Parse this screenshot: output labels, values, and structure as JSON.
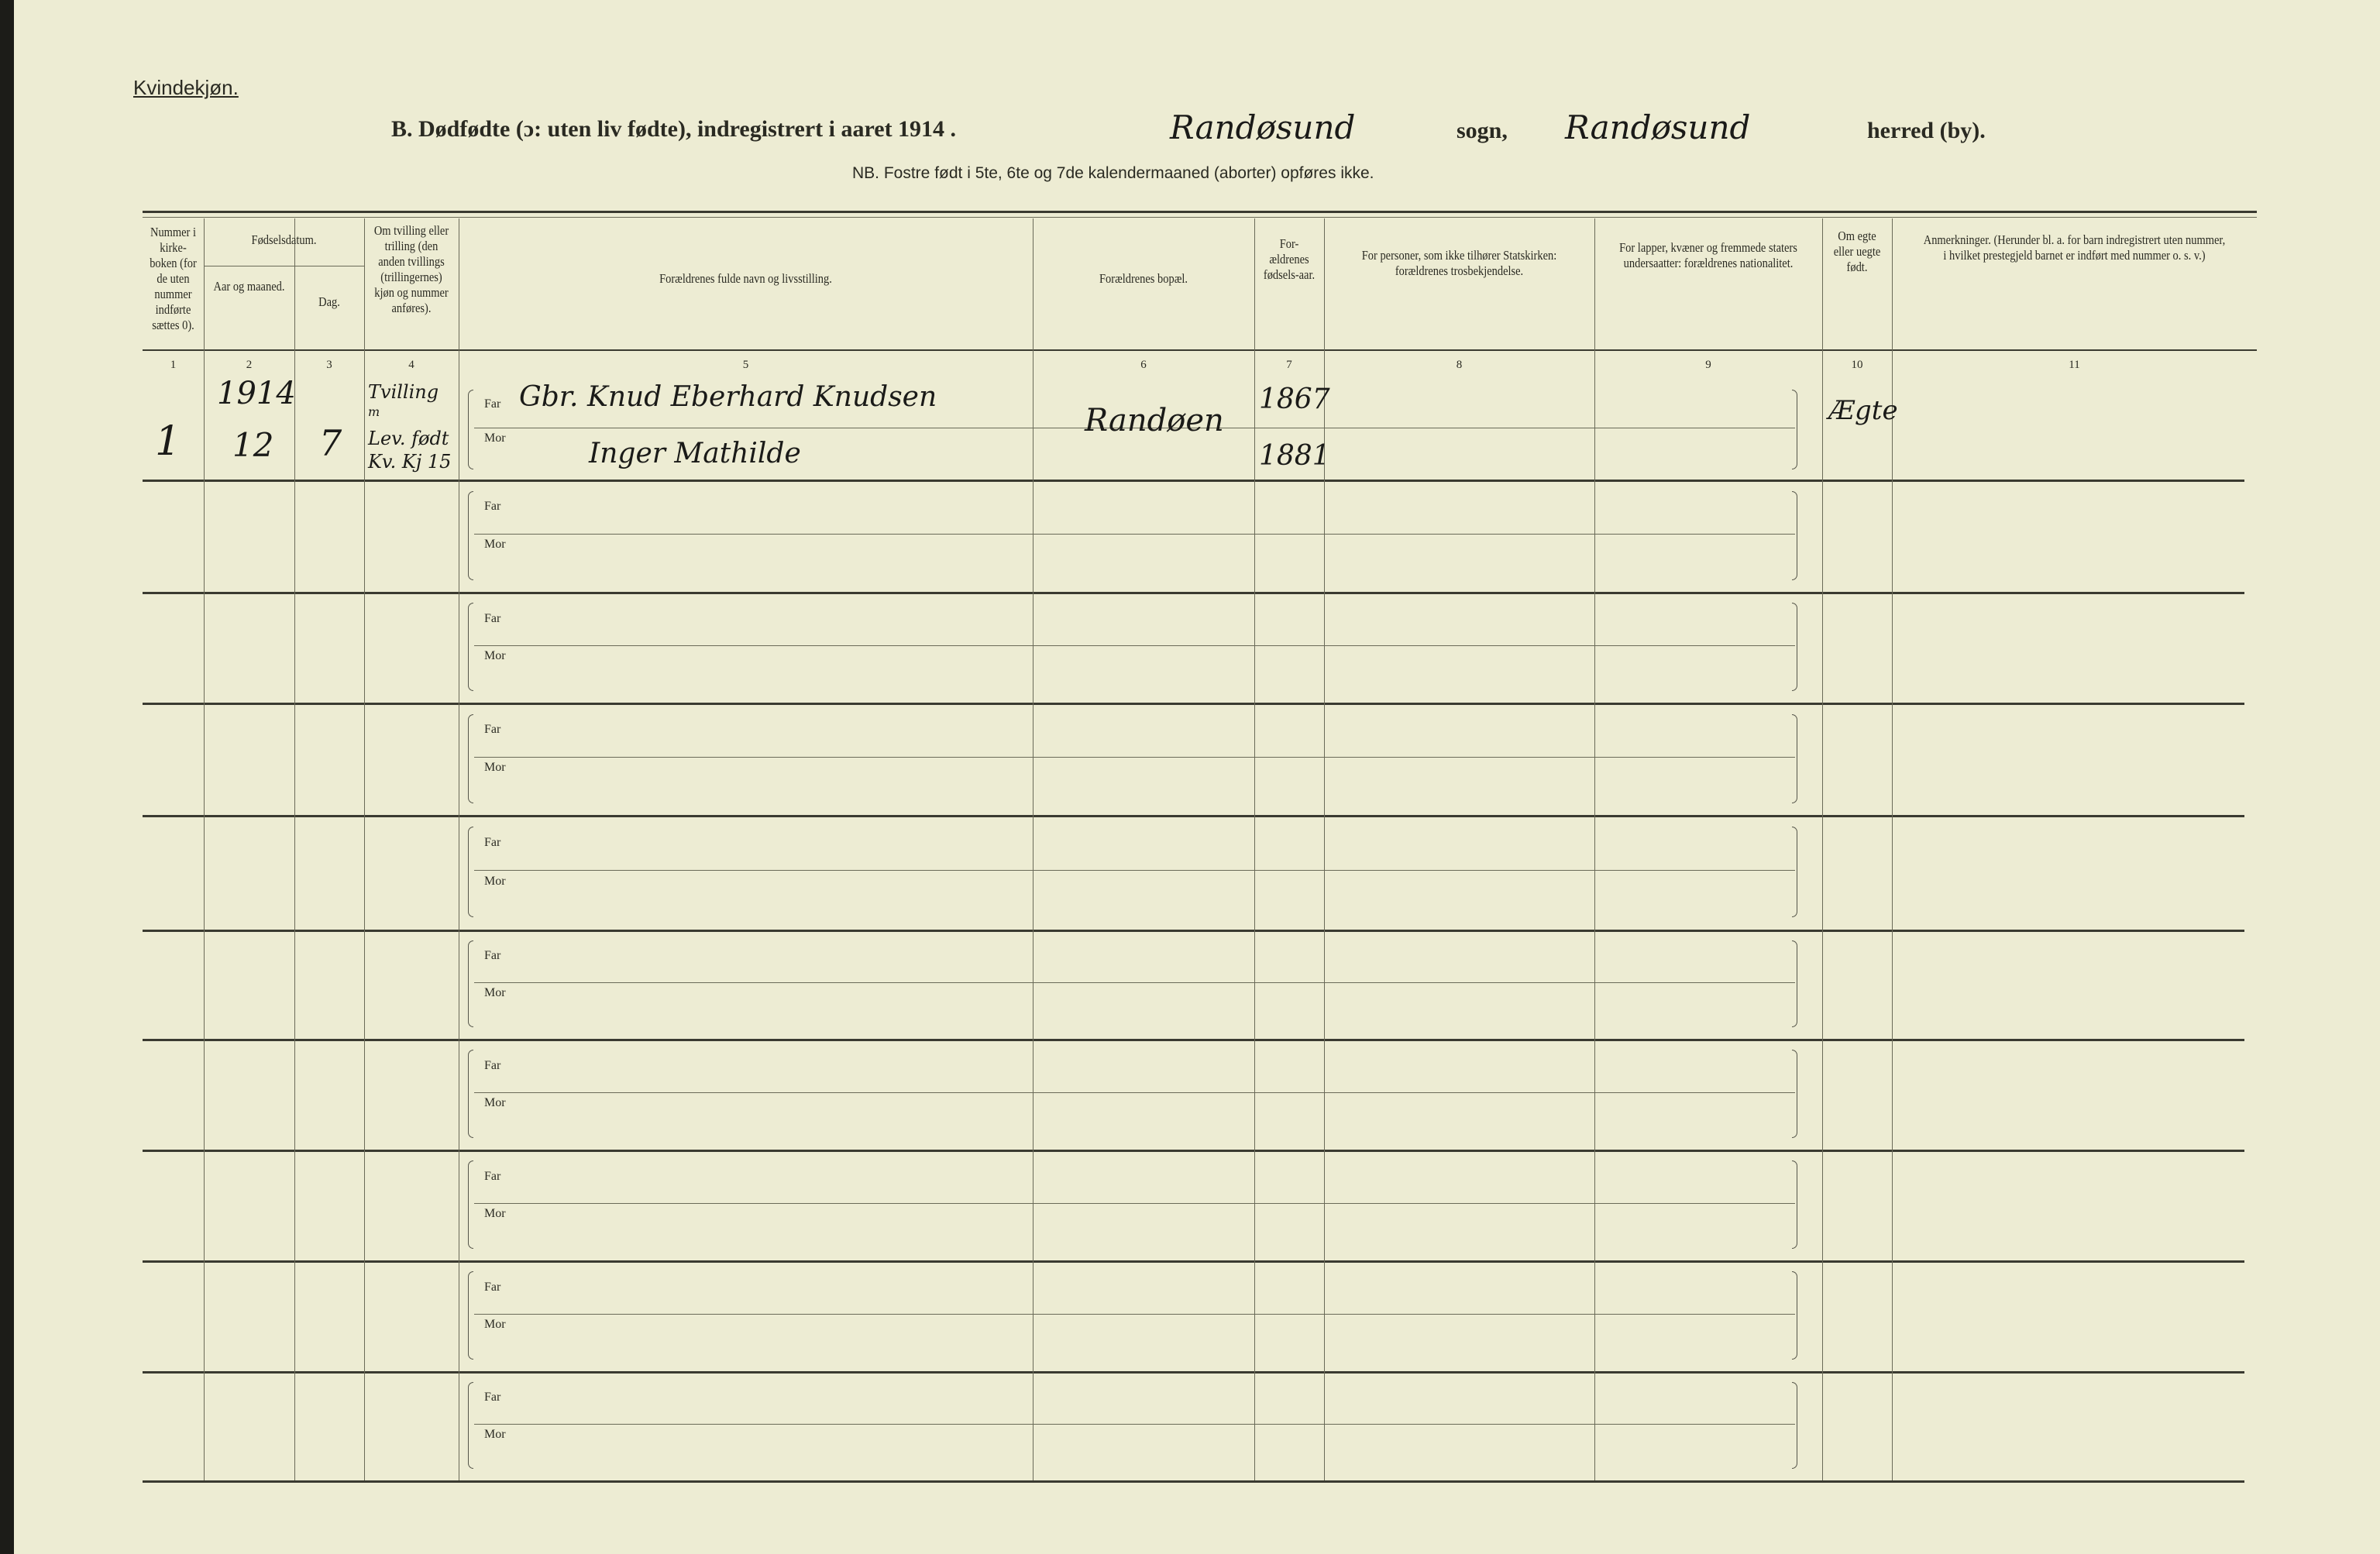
{
  "document": {
    "section_label": "Kvindekjøn.",
    "title_prefix": "B.  Dødfødte (ɔ: uten liv fødte), indregistrert i aaret 1914 .",
    "sogn_value": "Randøsund",
    "sogn_label": "sogn,",
    "herred_value": "Randøsund",
    "herred_label": "herred (by).",
    "note": "NB.  Fostre født i 5te, 6te og 7de kalendermaaned (aborter) opføres ikke."
  },
  "columns": [
    {
      "num": "1",
      "header": "Nummer i kirke-boken (for de uten nummer indførte sættes 0)."
    },
    {
      "num": "2",
      "header": "Aar og maaned."
    },
    {
      "num": "3",
      "header": "Dag."
    },
    {
      "num": "4",
      "header": "Om tvilling eller trilling (den anden tvillings (trillingernes) kjøn og nummer anføres)."
    },
    {
      "num": "5",
      "header": "Forældrenes fulde navn og livsstilling."
    },
    {
      "num": "6",
      "header": "Forældrenes bopæl."
    },
    {
      "num": "7",
      "header": "For-ældrenes fødsels-aar."
    },
    {
      "num": "8",
      "header": "For personer, som ikke tilhører Statskirken: forældrenes trosbekjendelse."
    },
    {
      "num": "9",
      "header": "For lapper, kvæner og fremmede staters undersaatter: forældrenes nationalitet."
    },
    {
      "num": "10",
      "header": "Om egte eller uegte født."
    },
    {
      "num": "11",
      "header": "Anmerkninger. (Herunder bl. a. for barn indregistrert uten nummer, i hvilket prestegjeld barnet er indført med nummer o. s. v.)"
    }
  ],
  "group_header": "Fødselsdatum.",
  "far_label": "Far",
  "mor_label": "Mor",
  "rows": [
    {
      "nummer": "1",
      "aar": "1914",
      "maaned": "12",
      "dag": "7",
      "tvilling": [
        "Tvilling",
        "m",
        "Lev. født",
        "Kv. Kj 15"
      ],
      "far": "Gbr. Knud Eberhard Knudsen",
      "mor": "Inger Mathilde",
      "bopael": "Randøen",
      "far_aar": "1867",
      "mor_aar": "1881",
      "egte": "Ægte"
    },
    {},
    {},
    {},
    {},
    {},
    {},
    {},
    {},
    {}
  ]
}
